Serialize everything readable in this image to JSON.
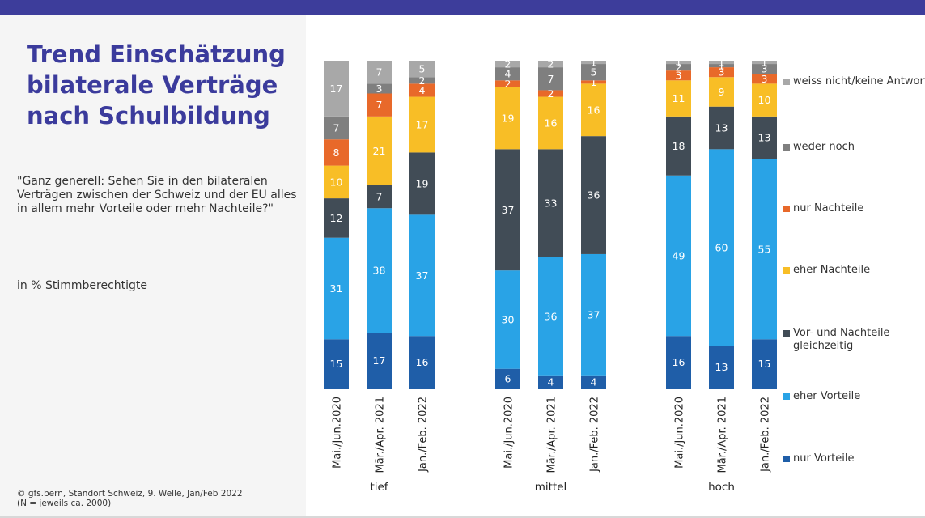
{
  "chart_data": {
    "type": "stacked_bar",
    "title": "Trend Einschätzung bilaterale Verträge nach Schulbildung",
    "subtitle": "\"Ganz generell: Sehen Sie in den bilateralen Verträgen zwischen der Schweiz und der EU alles in allem mehr Vorteile oder mehr Nachteile?\"",
    "unit_note": "in % Stimmberechtigte",
    "source": [
      "© gfs.bern, Standort Schweiz, 9. Welle, Jan/Feb 2022",
      "(N = jeweils ca. 2000)"
    ],
    "groups": [
      "tief",
      "mittel",
      "hoch"
    ],
    "categories": [
      "Mai./Jun.2020",
      "Mär./Apr. 2021",
      "Jan./Feb. 2022",
      "Mai./Jun.2020",
      "Mär./Apr. 2021",
      "Jan./Feb. 2022",
      "Mai./Jun.2020",
      "Mär./Apr. 2021",
      "Jan./Feb. 2022"
    ],
    "series": [
      {
        "name": "nur Vorteile",
        "color": "#1f5ea8",
        "values": [
          15,
          17,
          16,
          6,
          4,
          4,
          16,
          13,
          15
        ]
      },
      {
        "name": "eher Vorteile",
        "color": "#29a3e6",
        "values": [
          31,
          38,
          37,
          30,
          36,
          37,
          49,
          60,
          55
        ]
      },
      {
        "name": "Vor- und Nachteile gleichzeitig",
        "color": "#414c56",
        "values": [
          12,
          7,
          19,
          37,
          33,
          36,
          18,
          13,
          13
        ]
      },
      {
        "name": "eher Nachteile",
        "color": "#f8be26",
        "values": [
          10,
          21,
          17,
          19,
          16,
          16,
          11,
          9,
          10
        ]
      },
      {
        "name": "nur Nachteile",
        "color": "#e8692a",
        "values": [
          8,
          7,
          4,
          2,
          2,
          1,
          3,
          3,
          3
        ]
      },
      {
        "name": "weder noch",
        "color": "#7f7f7f",
        "values": [
          7,
          3,
          2,
          4,
          7,
          5,
          2,
          1,
          3
        ]
      },
      {
        "name": "weiss nicht/keine Antwort",
        "color": "#a8a8a8",
        "values": [
          17,
          7,
          5,
          2,
          2,
          1,
          1,
          1,
          1
        ]
      }
    ]
  }
}
